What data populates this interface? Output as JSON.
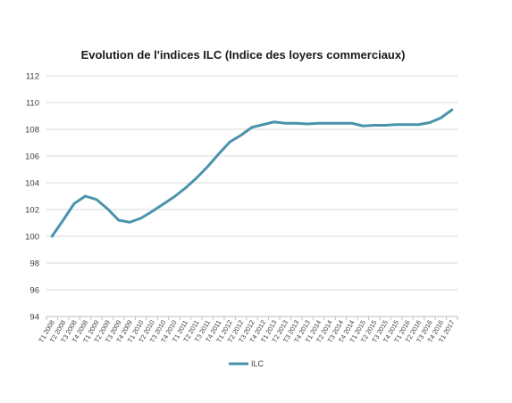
{
  "chart_data": {
    "type": "line",
    "title": "Evolution de l'indices ILC (Indice des loyers commerciaux)",
    "xlabel": "",
    "ylabel": "",
    "ylim": [
      94,
      112
    ],
    "y_ticks": [
      "94",
      "96",
      "98",
      "100",
      "102",
      "104",
      "106",
      "108",
      "110",
      "112"
    ],
    "grid": true,
    "legend_position": "bottom",
    "categories": [
      "T1 2008",
      "T2 2008",
      "T3 2008",
      "T4 2008",
      "T1 2009",
      "T2 2009",
      "T3 2009",
      "T4 2009",
      "T1 2010",
      "T2 2010",
      "T3 2010",
      "T4 2010",
      "T1 2011",
      "T2 2011",
      "T3 2011",
      "T4 2011",
      "T1 2012",
      "T2 2012",
      "T3 2012",
      "T4 2012",
      "T1 2013",
      "T2 2013",
      "T3 2013",
      "T4 2013",
      "T1 2014",
      "T2 2014",
      "T3 2014",
      "T4 2014",
      "T1 2015",
      "T2 2015",
      "T3 2015",
      "T4 2015",
      "T1 2016",
      "T2 2016",
      "T3 2016",
      "T4 2016",
      "T1 2017"
    ],
    "series": [
      {
        "name": "ILC",
        "color": "#4a93ac",
        "values": [
          100.0,
          101.2,
          102.45,
          103.0,
          102.75,
          102.05,
          101.2,
          101.05,
          101.35,
          101.85,
          102.4,
          102.95,
          103.6,
          104.35,
          105.2,
          106.15,
          107.05,
          107.55,
          108.15,
          108.35,
          108.55,
          108.45,
          108.45,
          108.4,
          108.45,
          108.45,
          108.45,
          108.45,
          108.25,
          108.3,
          108.3,
          108.35,
          108.35,
          108.35,
          108.5,
          108.85,
          109.45
        ]
      }
    ]
  }
}
